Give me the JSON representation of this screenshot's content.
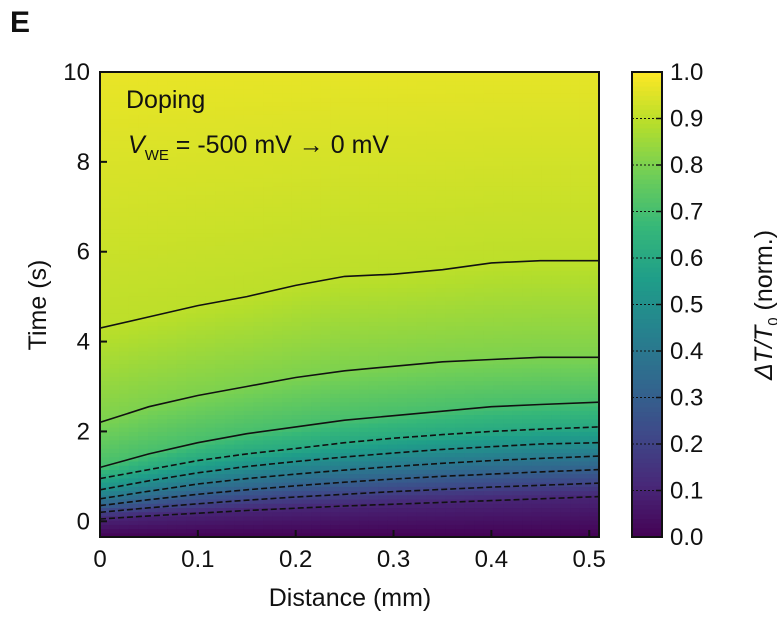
{
  "panel_label": "E",
  "chart_data": {
    "type": "heatmap",
    "xlabel": "Distance (mm)",
    "ylabel": "Time (s)",
    "xlim": [
      0,
      0.51
    ],
    "ylim": [
      -0.35,
      10
    ],
    "xticks": [
      "0",
      "0.1",
      "0.2",
      "0.3",
      "0.4",
      "0.5"
    ],
    "xtick_values": [
      0,
      0.1,
      0.2,
      0.3,
      0.4,
      0.5
    ],
    "yticks": [
      "0",
      "2",
      "4",
      "6",
      "8",
      "10"
    ],
    "ytick_values": [
      0,
      2,
      4,
      6,
      8,
      10
    ],
    "annotation": {
      "line1": "Doping",
      "vsym": "V",
      "vsub": "WE",
      "rest": " = -500 mV → 0 mV"
    },
    "colorbar": {
      "label": "ΔT/T",
      "label_sub": "0",
      "label_suffix": " (norm.)",
      "colormap": "viridis",
      "range": [
        0,
        1
      ],
      "ticks": [
        "0.0",
        "0.1",
        "0.2",
        "0.3",
        "0.4",
        "0.5",
        "0.6",
        "0.7",
        "0.8",
        "0.9",
        "1.0"
      ],
      "tick_values": [
        0,
        0.1,
        0.2,
        0.3,
        0.4,
        0.5,
        0.6,
        0.7,
        0.8,
        0.9,
        1.0
      ]
    },
    "contour_levels": [
      0.1,
      0.2,
      0.3,
      0.4,
      0.5,
      0.6,
      0.7,
      0.8,
      0.9
    ],
    "contours": [
      {
        "level": 0.9,
        "style": "solid",
        "x": [
          0,
          0.05,
          0.1,
          0.15,
          0.2,
          0.25,
          0.3,
          0.35,
          0.4,
          0.45,
          0.51
        ],
        "y": [
          4.3,
          4.55,
          4.8,
          5.0,
          5.25,
          5.45,
          5.5,
          5.6,
          5.75,
          5.8,
          5.8
        ]
      },
      {
        "level": 0.8,
        "style": "solid",
        "x": [
          0,
          0.05,
          0.1,
          0.15,
          0.2,
          0.25,
          0.3,
          0.35,
          0.4,
          0.45,
          0.51
        ],
        "y": [
          2.2,
          2.55,
          2.8,
          3.0,
          3.2,
          3.35,
          3.45,
          3.55,
          3.6,
          3.65,
          3.65
        ]
      },
      {
        "level": 0.7,
        "style": "solid",
        "x": [
          0,
          0.05,
          0.1,
          0.15,
          0.2,
          0.25,
          0.3,
          0.35,
          0.4,
          0.45,
          0.51
        ],
        "y": [
          1.2,
          1.5,
          1.75,
          1.95,
          2.1,
          2.25,
          2.35,
          2.45,
          2.55,
          2.6,
          2.65
        ]
      },
      {
        "level": 0.6,
        "style": "dashed",
        "x": [
          0,
          0.05,
          0.1,
          0.15,
          0.2,
          0.25,
          0.3,
          0.35,
          0.4,
          0.45,
          0.51
        ],
        "y": [
          0.95,
          1.15,
          1.35,
          1.5,
          1.62,
          1.75,
          1.85,
          1.93,
          2.0,
          2.05,
          2.1
        ]
      },
      {
        "level": 0.5,
        "style": "dashed",
        "x": [
          0,
          0.05,
          0.1,
          0.15,
          0.2,
          0.25,
          0.3,
          0.35,
          0.4,
          0.45,
          0.51
        ],
        "y": [
          0.7,
          0.9,
          1.08,
          1.22,
          1.33,
          1.43,
          1.52,
          1.6,
          1.66,
          1.72,
          1.75
        ]
      },
      {
        "level": 0.4,
        "style": "dashed",
        "x": [
          0,
          0.05,
          0.1,
          0.15,
          0.2,
          0.25,
          0.3,
          0.35,
          0.4,
          0.45,
          0.51
        ],
        "y": [
          0.5,
          0.67,
          0.83,
          0.95,
          1.05,
          1.14,
          1.22,
          1.29,
          1.35,
          1.4,
          1.45
        ]
      },
      {
        "level": 0.3,
        "style": "dashed",
        "x": [
          0,
          0.05,
          0.1,
          0.15,
          0.2,
          0.25,
          0.3,
          0.35,
          0.4,
          0.45,
          0.51
        ],
        "y": [
          0.35,
          0.48,
          0.6,
          0.7,
          0.79,
          0.87,
          0.94,
          1.0,
          1.05,
          1.1,
          1.15
        ]
      },
      {
        "level": 0.2,
        "style": "dashed",
        "x": [
          0,
          0.05,
          0.1,
          0.15,
          0.2,
          0.25,
          0.3,
          0.35,
          0.4,
          0.45,
          0.51
        ],
        "y": [
          0.2,
          0.3,
          0.39,
          0.47,
          0.54,
          0.6,
          0.66,
          0.71,
          0.76,
          0.8,
          0.85
        ]
      },
      {
        "level": 0.1,
        "style": "dashed",
        "x": [
          0,
          0.05,
          0.1,
          0.15,
          0.2,
          0.25,
          0.3,
          0.35,
          0.4,
          0.45,
          0.51
        ],
        "y": [
          0.05,
          0.12,
          0.18,
          0.24,
          0.29,
          0.34,
          0.38,
          0.42,
          0.46,
          0.5,
          0.55
        ]
      }
    ]
  }
}
